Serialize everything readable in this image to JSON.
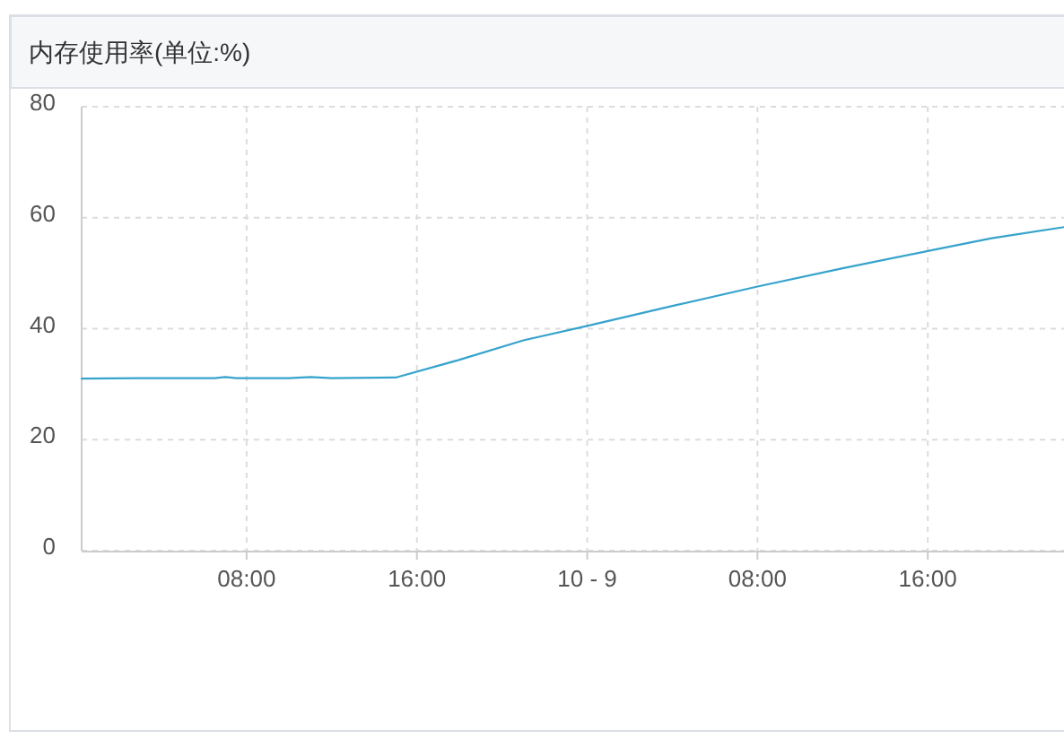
{
  "chart_data": {
    "type": "line",
    "title": "内存使用率(单位:%)",
    "x": [
      "--10-08T00:15",
      "--10-08T03:00",
      "--10-08T06:30",
      "--10-08T07:00",
      "--10-08T07:30",
      "--10-08T10:00",
      "--10-08T11:00",
      "--10-08T12:00",
      "--10-08T15:00",
      "--10-08T18:00",
      "--10-08T21:00",
      "--10-09T00:00",
      "--10-09T04:00",
      "--10-09T08:00",
      "--10-09T12:00",
      "--10-09T16:00",
      "--10-09T19:00",
      "--10-09T22:24"
    ],
    "values": [
      31,
      31.1,
      31.1,
      31.3,
      31.1,
      31.1,
      31.3,
      31.1,
      31.2,
      34.4,
      37.9,
      40.5,
      44.1,
      47.6,
      50.9,
      54,
      56.3,
      58.3
    ],
    "color": "#36a3cc",
    "xlim": [
      "--10-08T00:15",
      "--10-09T22:24"
    ],
    "xticks": [
      {
        "value": "--10-08T08:00",
        "label": "08:00"
      },
      {
        "value": "--10-08T16:00",
        "label": "16:00"
      },
      {
        "value": "--10-09",
        "label": "10 - 9"
      },
      {
        "value": "--10-09T08:00",
        "label": "08:00"
      },
      {
        "value": "--10-09T16:00",
        "label": "16:00"
      }
    ],
    "ylim": [
      0,
      80
    ],
    "yticks": [
      0,
      20,
      40,
      60,
      80
    ],
    "grid": true
  }
}
